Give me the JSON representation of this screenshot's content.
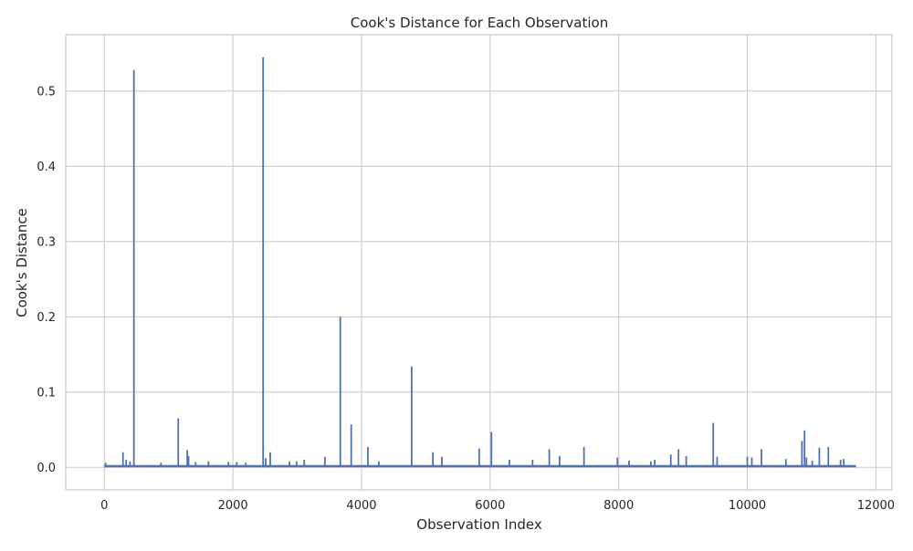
{
  "chart_data": {
    "type": "bar",
    "title": "Cook's Distance for Each Observation",
    "xlabel": "Observation Index",
    "ylabel": "Cook's Distance",
    "xlim": [
      -600,
      12250
    ],
    "ylim": [
      -0.03,
      0.575
    ],
    "xticks": [
      0,
      2000,
      4000,
      6000,
      8000,
      10000,
      12000
    ],
    "xtick_labels": [
      "0",
      "2000",
      "4000",
      "6000",
      "8000",
      "10000",
      "12000"
    ],
    "yticks": [
      0.0,
      0.1,
      0.2,
      0.3,
      0.4,
      0.5
    ],
    "ytick_labels": [
      "0.0",
      "0.1",
      "0.2",
      "0.3",
      "0.4",
      "0.5"
    ],
    "grid": true,
    "bar_color": "#4c72b0",
    "grid_color": "#cccccc",
    "spine_color": "#cccccc",
    "x_range": [
      0,
      11690
    ],
    "baseline": 0.003,
    "x": [
      20,
      290,
      340,
      400,
      460,
      880,
      1150,
      1290,
      1310,
      1420,
      1620,
      1930,
      2060,
      2200,
      2470,
      2510,
      2580,
      2880,
      2990,
      3110,
      3430,
      3670,
      3840,
      4100,
      4270,
      4780,
      5110,
      5250,
      5830,
      6020,
      6300,
      6660,
      6920,
      7080,
      7460,
      7980,
      8160,
      8500,
      8560,
      8810,
      8930,
      9050,
      9470,
      9530,
      10000,
      10070,
      10220,
      10600,
      10850,
      10890,
      10920,
      11010,
      11120,
      11260,
      11450,
      11500
    ],
    "values": [
      0.006,
      0.02,
      0.01,
      0.008,
      0.528,
      0.006,
      0.065,
      0.023,
      0.015,
      0.007,
      0.008,
      0.007,
      0.007,
      0.006,
      0.545,
      0.012,
      0.02,
      0.008,
      0.008,
      0.01,
      0.014,
      0.2,
      0.057,
      0.027,
      0.008,
      0.134,
      0.02,
      0.014,
      0.025,
      0.047,
      0.01,
      0.01,
      0.024,
      0.015,
      0.027,
      0.013,
      0.009,
      0.008,
      0.01,
      0.017,
      0.024,
      0.015,
      0.059,
      0.014,
      0.014,
      0.013,
      0.024,
      0.011,
      0.035,
      0.049,
      0.013,
      0.009,
      0.026,
      0.027,
      0.01,
      0.011
    ]
  }
}
